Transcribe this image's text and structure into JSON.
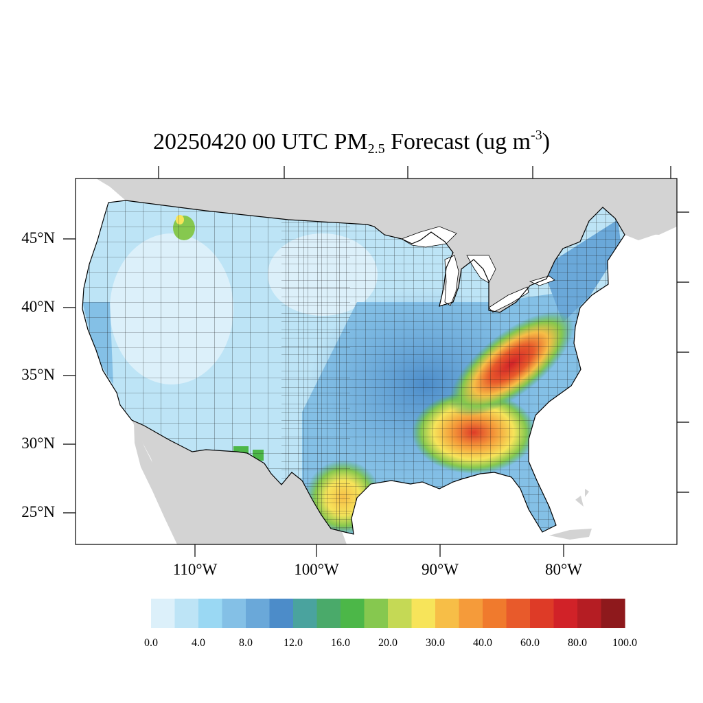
{
  "map": {
    "title_main": "20250420 00 UTC PM",
    "title_sub": "2.5",
    "title_mid": " Forecast (ug m",
    "title_sup": "-3",
    "title_end": ")",
    "lat_labels": [
      "45°N",
      "40°N",
      "35°N",
      "30°N",
      "25°N"
    ],
    "lon_labels": [
      "110°W",
      "100°W",
      "90°W",
      "80°W"
    ],
    "colors": {
      "land_outside": "#d3d3d3",
      "water": "#ffffff",
      "border": "#000000"
    }
  },
  "colorbar": {
    "colors": [
      "#dcf0fa",
      "#bde4f6",
      "#9ad8f3",
      "#84c0e6",
      "#6aa8d9",
      "#4c8cc9",
      "#4aa39e",
      "#4aaa6a",
      "#4cb748",
      "#86c84f",
      "#c5d955",
      "#f7e45a",
      "#f7be47",
      "#f59b3a",
      "#f07a2d",
      "#e85a2b",
      "#de3b27",
      "#d12228",
      "#b51d23",
      "#8e191c"
    ],
    "labels": [
      "0.0",
      "4.0",
      "8.0",
      "12.0",
      "16.0",
      "20.0",
      "30.0",
      "40.0",
      "60.0",
      "80.0",
      "100.0"
    ]
  }
}
